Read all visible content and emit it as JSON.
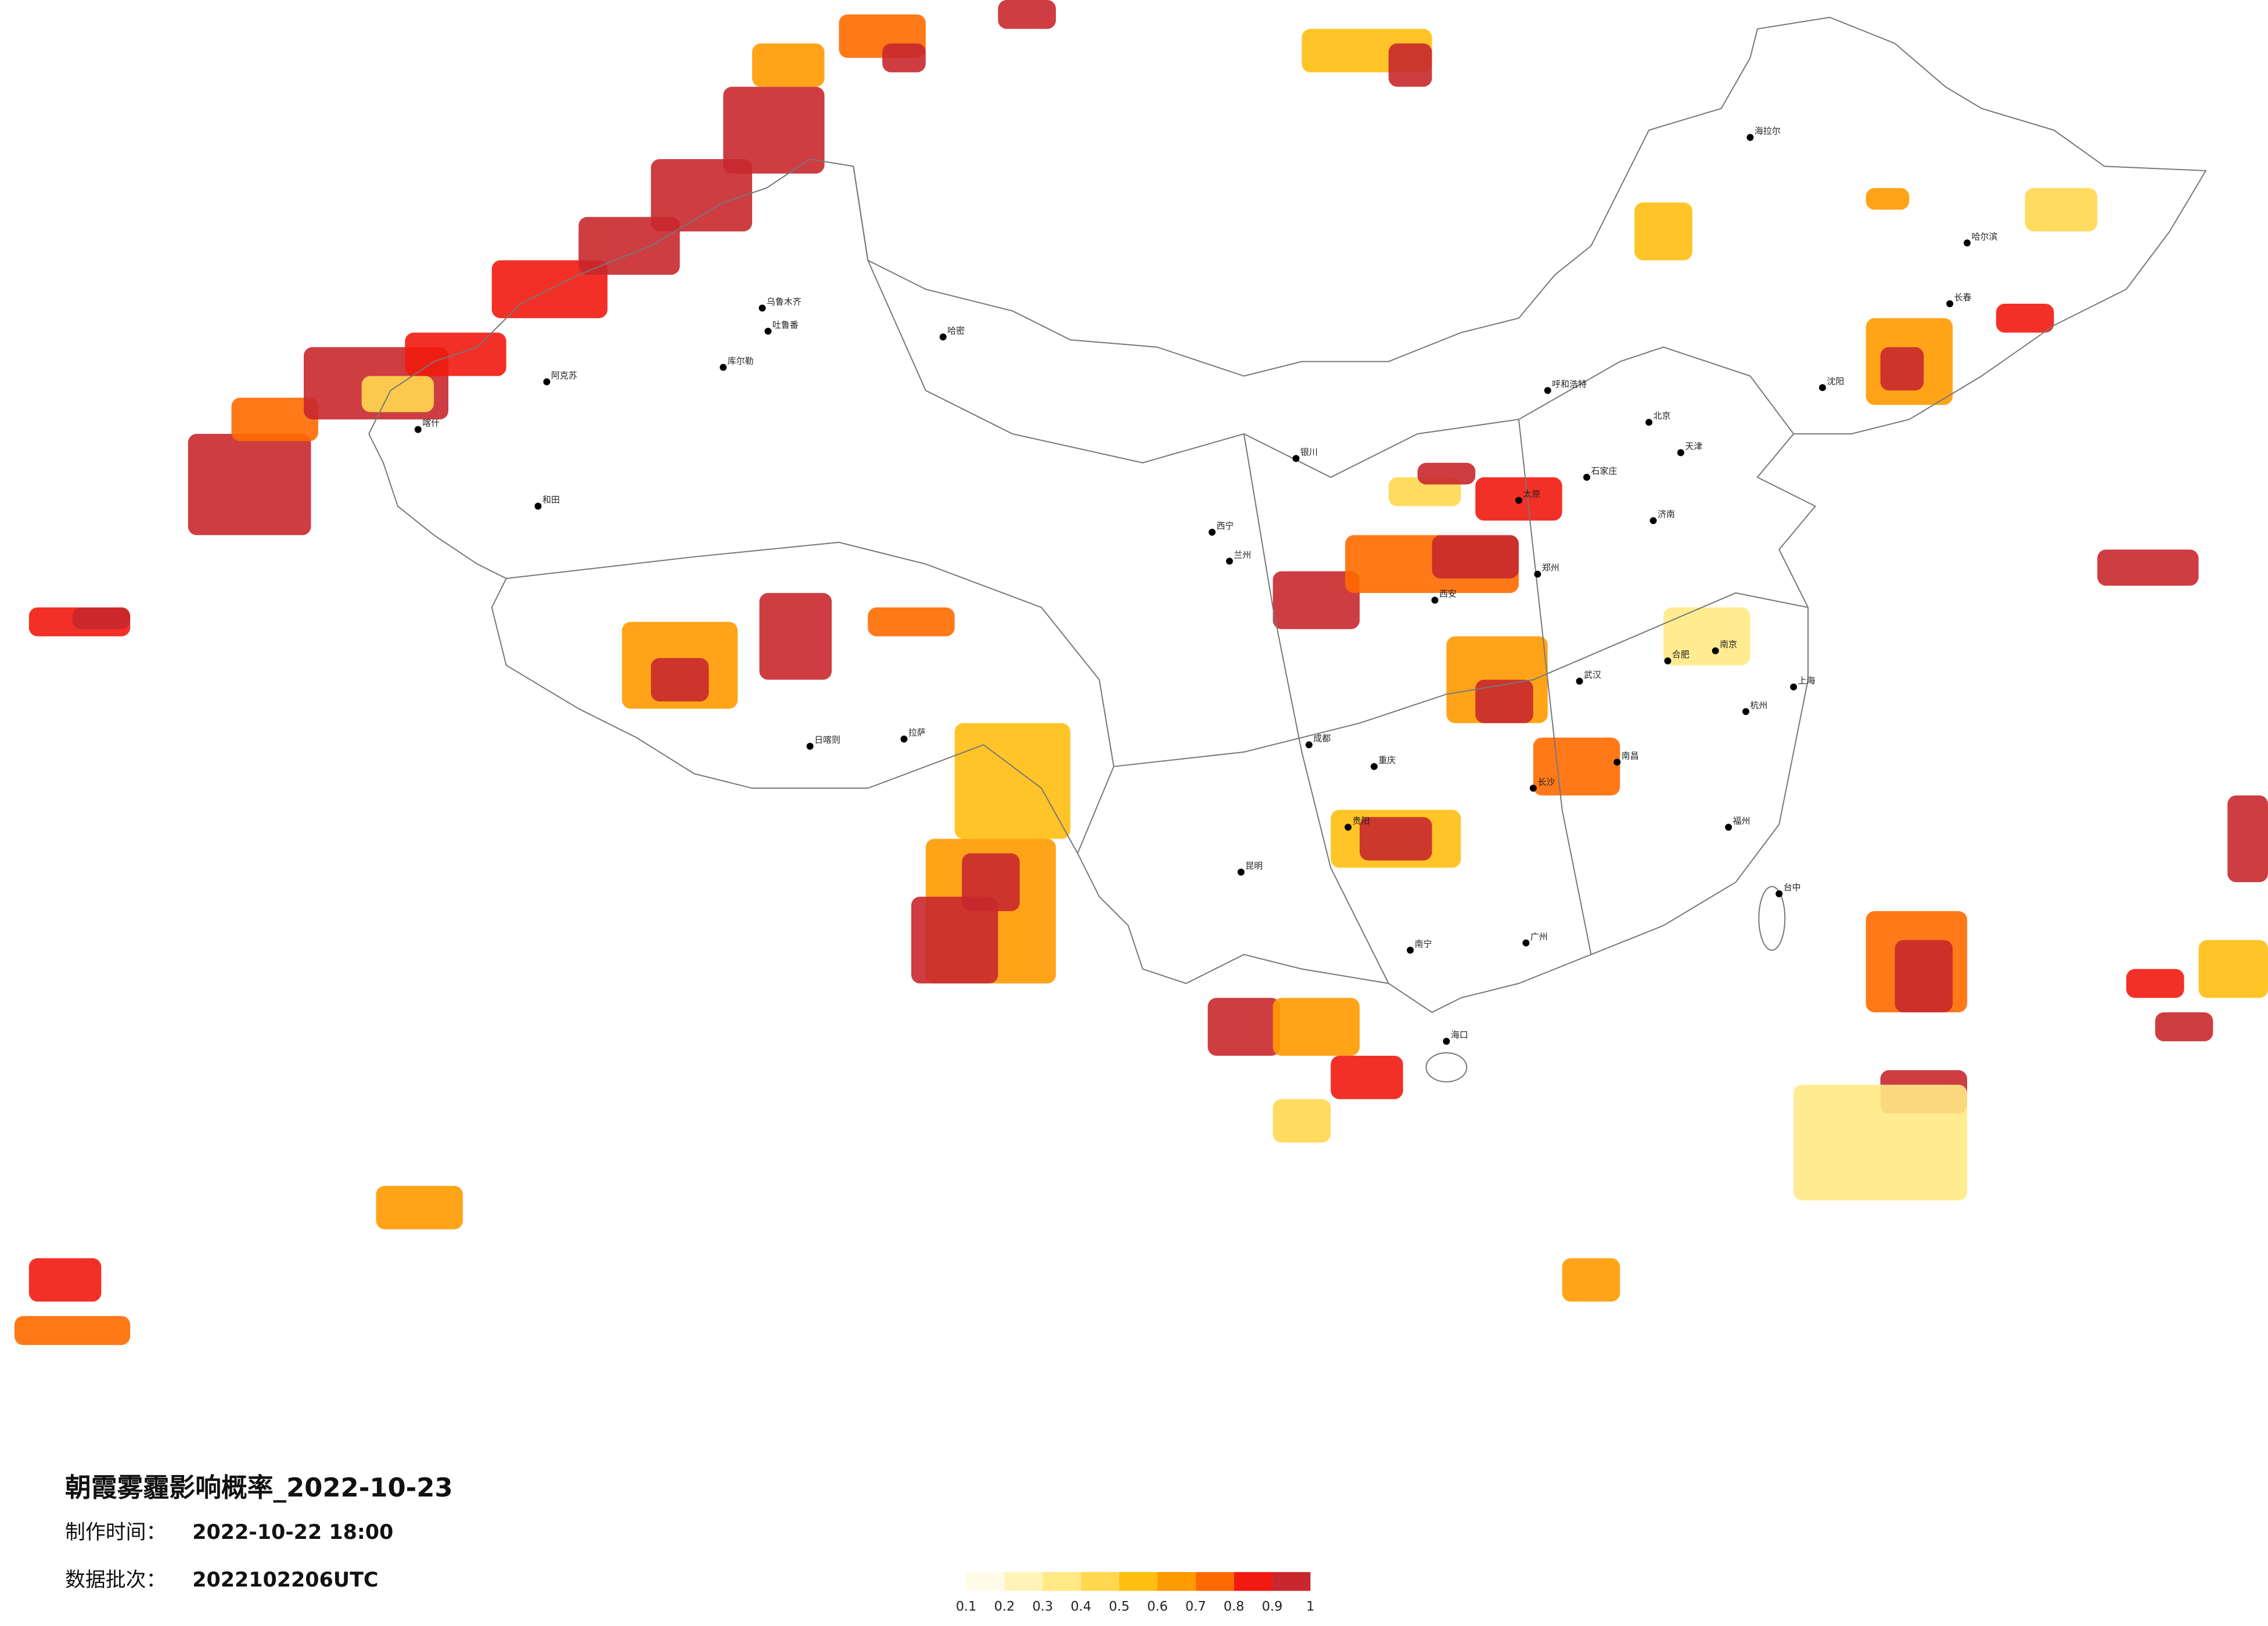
{
  "title": "朝霞雾霾影响概率_2022-10-23",
  "issue_label": "制作时间：",
  "issue_time": "2022-10-22 18:00",
  "batch_label": "数据批次：",
  "batch": "2022102206UTC",
  "colorbar": {
    "ticks": [
      0.1,
      0.2,
      0.3,
      0.4,
      0.5,
      0.6,
      0.7,
      0.8,
      0.9,
      1
    ],
    "colors": [
      "#fffbe8",
      "#fff4b8",
      "#ffea85",
      "#ffd84f",
      "#ffbe10",
      "#ff9a00",
      "#ff6a00",
      "#f21a10",
      "#c8282d"
    ]
  },
  "cities": [
    "乌鲁木齐",
    "吐鲁番",
    "哈密",
    "库尔勒",
    "和田",
    "喀什",
    "阿克苏",
    "拉萨",
    "日喀则",
    "西宁",
    "兰州",
    "银川",
    "呼和浩特",
    "北京",
    "天津",
    "石家庄",
    "太原",
    "郑州",
    "西安",
    "成都",
    "重庆",
    "贵阳",
    "昆明",
    "南宁",
    "长沙",
    "武汉",
    "南昌",
    "合肥",
    "南京",
    "上海",
    "杭州",
    "福州",
    "广州",
    "济南",
    "沈阳",
    "长春",
    "哈尔滨",
    "海拉尔",
    "台中",
    "海口"
  ]
}
